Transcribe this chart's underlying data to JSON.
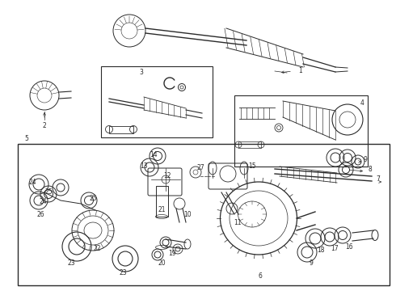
{
  "bg_color": "#ffffff",
  "line_color": "#2a2a2a",
  "fig_width": 4.9,
  "fig_height": 3.6,
  "dpi": 100,
  "lw": 0.7,
  "label_fontsize": 5.5
}
